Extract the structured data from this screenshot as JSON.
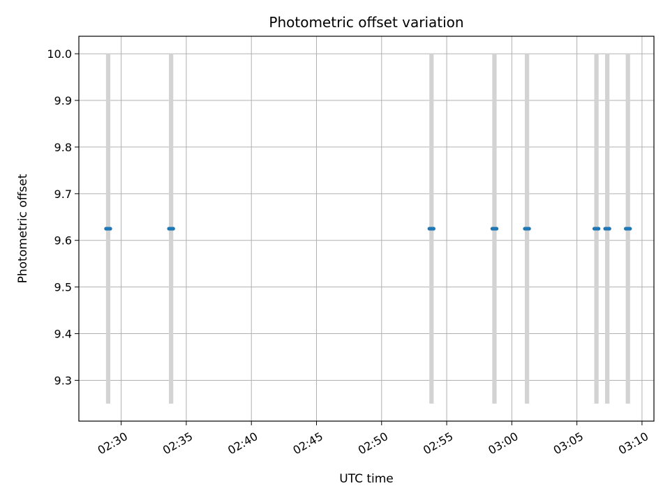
{
  "chart_data": {
    "type": "scatter",
    "title": "Photometric offset variation",
    "xlabel": "UTC time",
    "ylabel": "Photometric offset",
    "x_is_time": true,
    "xlim": [
      "02:26:45",
      "03:10:55"
    ],
    "ylim": [
      9.2125,
      10.0375
    ],
    "x_ticks": [
      "02:30",
      "02:35",
      "02:40",
      "02:45",
      "02:50",
      "02:55",
      "03:00",
      "03:05",
      "03:10"
    ],
    "y_ticks": [
      9.3,
      9.4,
      9.5,
      9.6,
      9.7,
      9.8,
      9.9,
      10.0
    ],
    "grid": true,
    "marker_color": "#1f77b4",
    "band_color": "#d3d3d3",
    "shaded_intervals": [
      {
        "start": "02:28:50",
        "end": "02:29:10",
        "y_range": [
          9.25,
          10.0
        ]
      },
      {
        "start": "02:33:40",
        "end": "02:34:00",
        "y_range": [
          9.25,
          10.0
        ]
      },
      {
        "start": "02:53:40",
        "end": "02:54:00",
        "y_range": [
          9.25,
          10.0
        ]
      },
      {
        "start": "02:58:30",
        "end": "02:58:50",
        "y_range": [
          9.25,
          10.0
        ]
      },
      {
        "start": "03:01:00",
        "end": "03:01:20",
        "y_range": [
          9.25,
          10.0
        ]
      },
      {
        "start": "03:06:20",
        "end": "03:06:40",
        "y_range": [
          9.25,
          10.0
        ]
      },
      {
        "start": "03:07:10",
        "end": "03:07:30",
        "y_range": [
          9.25,
          10.0
        ]
      },
      {
        "start": "03:08:45",
        "end": "03:09:05",
        "y_range": [
          9.25,
          10.0
        ]
      }
    ],
    "points": [
      {
        "x": "02:28:50",
        "y": 9.625
      },
      {
        "x": "02:28:55",
        "y": 9.625
      },
      {
        "x": "02:29:00",
        "y": 9.625
      },
      {
        "x": "02:29:05",
        "y": 9.625
      },
      {
        "x": "02:29:10",
        "y": 9.625
      },
      {
        "x": "02:33:40",
        "y": 9.625
      },
      {
        "x": "02:33:45",
        "y": 9.625
      },
      {
        "x": "02:33:50",
        "y": 9.625
      },
      {
        "x": "02:33:55",
        "y": 9.625
      },
      {
        "x": "02:34:00",
        "y": 9.625
      },
      {
        "x": "02:53:40",
        "y": 9.625
      },
      {
        "x": "02:53:45",
        "y": 9.625
      },
      {
        "x": "02:53:50",
        "y": 9.625
      },
      {
        "x": "02:53:55",
        "y": 9.625
      },
      {
        "x": "02:54:00",
        "y": 9.625
      },
      {
        "x": "02:58:30",
        "y": 9.625
      },
      {
        "x": "02:58:35",
        "y": 9.625
      },
      {
        "x": "02:58:40",
        "y": 9.625
      },
      {
        "x": "02:58:45",
        "y": 9.625
      },
      {
        "x": "02:58:50",
        "y": 9.625
      },
      {
        "x": "03:01:00",
        "y": 9.625
      },
      {
        "x": "03:01:05",
        "y": 9.625
      },
      {
        "x": "03:01:10",
        "y": 9.625
      },
      {
        "x": "03:01:15",
        "y": 9.625
      },
      {
        "x": "03:01:20",
        "y": 9.625
      },
      {
        "x": "03:06:20",
        "y": 9.625
      },
      {
        "x": "03:06:25",
        "y": 9.625
      },
      {
        "x": "03:06:30",
        "y": 9.625
      },
      {
        "x": "03:06:35",
        "y": 9.625
      },
      {
        "x": "03:06:40",
        "y": 9.625
      },
      {
        "x": "03:07:10",
        "y": 9.625
      },
      {
        "x": "03:07:15",
        "y": 9.625
      },
      {
        "x": "03:07:20",
        "y": 9.625
      },
      {
        "x": "03:07:25",
        "y": 9.625
      },
      {
        "x": "03:07:30",
        "y": 9.625
      },
      {
        "x": "03:08:45",
        "y": 9.625
      },
      {
        "x": "03:08:50",
        "y": 9.625
      },
      {
        "x": "03:08:55",
        "y": 9.625
      },
      {
        "x": "03:09:00",
        "y": 9.625
      },
      {
        "x": "03:09:05",
        "y": 9.625
      }
    ]
  }
}
